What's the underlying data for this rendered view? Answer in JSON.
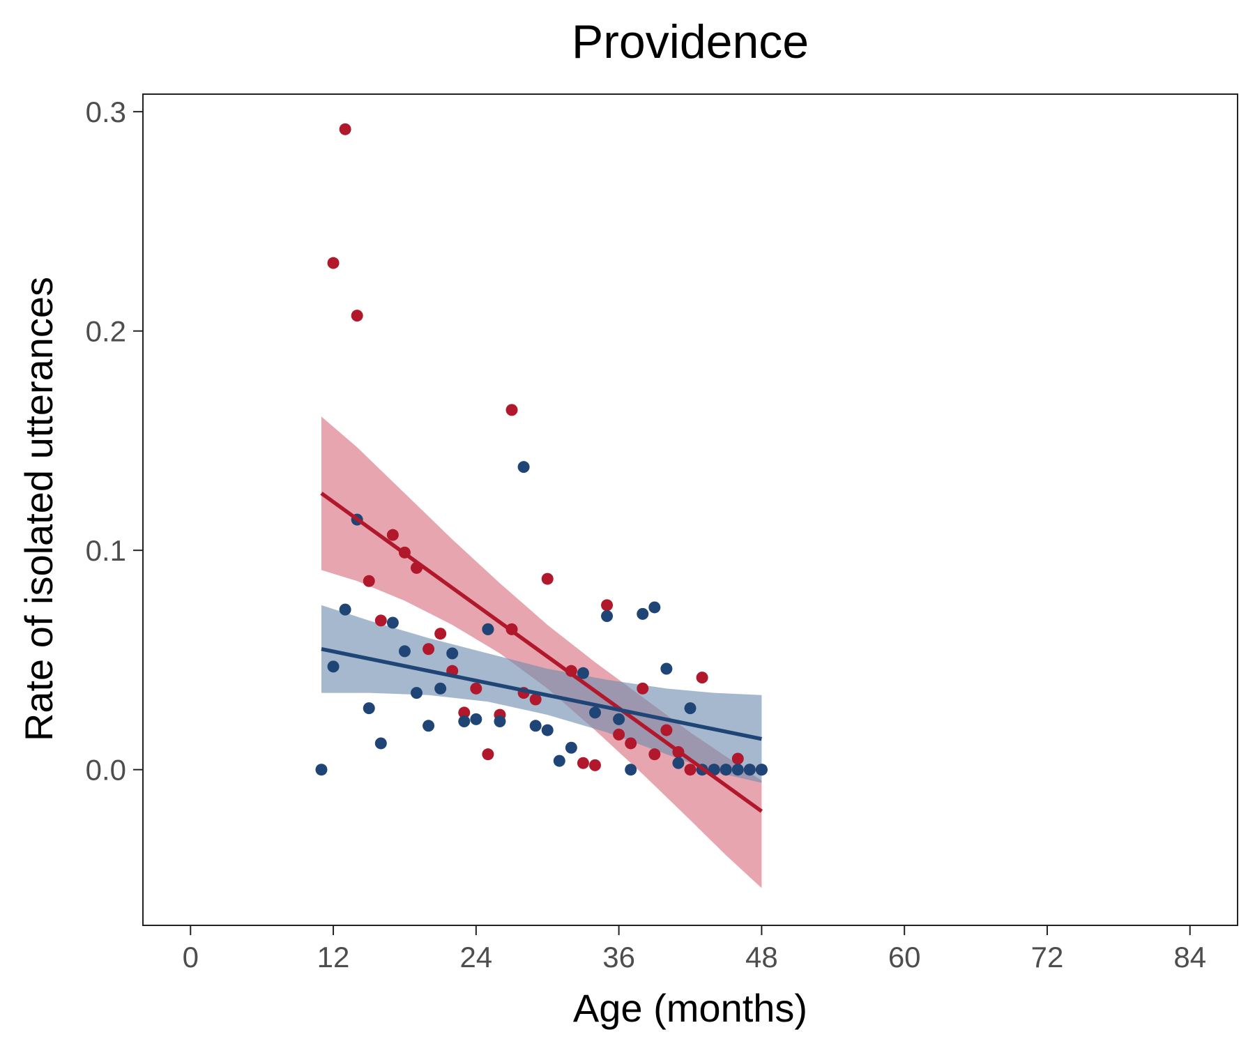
{
  "chart_data": {
    "type": "scatter",
    "title": "Providence",
    "xlabel": "Age (months)",
    "ylabel": "Rate of isolated utterances",
    "xlim": [
      -4,
      88
    ],
    "ylim": [
      -0.071,
      0.308
    ],
    "x_ticks": [
      0,
      12,
      24,
      36,
      48,
      60,
      72,
      84
    ],
    "x_tick_labels": [
      "0",
      "12",
      "24",
      "36",
      "48",
      "60",
      "72",
      "84"
    ],
    "y_ticks": [
      0.0,
      0.1,
      0.2,
      0.3
    ],
    "y_tick_labels": [
      "0.0",
      "0.1",
      "0.2",
      "0.3"
    ],
    "grid": false,
    "legend": "none",
    "series": [
      {
        "color": "#b2182b",
        "band_color": "#d9707e",
        "points": [
          [
            12,
            0.231
          ],
          [
            13,
            0.292
          ],
          [
            14,
            0.207
          ],
          [
            15,
            0.086
          ],
          [
            16,
            0.068
          ],
          [
            17,
            0.107
          ],
          [
            18,
            0.099
          ],
          [
            19,
            0.092
          ],
          [
            20,
            0.055
          ],
          [
            21,
            0.062
          ],
          [
            22,
            0.045
          ],
          [
            23,
            0.026
          ],
          [
            24,
            0.037
          ],
          [
            25,
            0.007
          ],
          [
            25,
            0.064
          ],
          [
            26,
            0.025
          ],
          [
            27,
            0.164
          ],
          [
            27,
            0.064
          ],
          [
            28,
            0.035
          ],
          [
            29,
            0.032
          ],
          [
            30,
            0.087
          ],
          [
            32,
            0.045
          ],
          [
            33,
            0.003
          ],
          [
            34,
            0.002
          ],
          [
            35,
            0.075
          ],
          [
            36,
            0.016
          ],
          [
            37,
            0.012
          ],
          [
            38,
            0.037
          ],
          [
            39,
            0.007
          ],
          [
            40,
            0.018
          ],
          [
            41,
            0.008
          ],
          [
            42,
            0.0
          ],
          [
            43,
            0.042
          ],
          [
            44,
            0.0
          ],
          [
            45,
            0.0
          ],
          [
            46,
            0.005
          ],
          [
            47,
            0.0
          ],
          [
            48,
            0.0
          ]
        ],
        "fit": {
          "x": [
            11,
            48
          ],
          "y": [
            0.126,
            -0.019
          ]
        },
        "band": {
          "x": [
            11,
            14,
            18,
            22,
            26,
            30,
            34,
            38,
            42,
            45,
            48
          ],
          "upper": [
            0.161,
            0.147,
            0.126,
            0.105,
            0.085,
            0.066,
            0.049,
            0.033,
            0.017,
            0.006,
            -0.005
          ],
          "lower": [
            0.091,
            0.086,
            0.077,
            0.066,
            0.053,
            0.037,
            0.018,
            -0.002,
            -0.023,
            -0.039,
            -0.054
          ]
        }
      },
      {
        "color": "#1f4577",
        "band_color": "#6f8cb0",
        "points": [
          [
            11,
            0.0
          ],
          [
            12,
            0.047
          ],
          [
            13,
            0.073
          ],
          [
            14,
            0.114
          ],
          [
            15,
            0.028
          ],
          [
            16,
            0.012
          ],
          [
            17,
            0.067
          ],
          [
            18,
            0.054
          ],
          [
            19,
            0.035
          ],
          [
            20,
            0.02
          ],
          [
            21,
            0.037
          ],
          [
            22,
            0.053
          ],
          [
            23,
            0.022
          ],
          [
            24,
            0.023
          ],
          [
            25,
            0.064
          ],
          [
            26,
            0.022
          ],
          [
            28,
            0.138
          ],
          [
            29,
            0.02
          ],
          [
            30,
            0.018
          ],
          [
            31,
            0.004
          ],
          [
            32,
            0.01
          ],
          [
            33,
            0.044
          ],
          [
            34,
            0.026
          ],
          [
            35,
            0.07
          ],
          [
            36,
            0.023
          ],
          [
            37,
            0.0
          ],
          [
            38,
            0.071
          ],
          [
            39,
            0.074
          ],
          [
            40,
            0.046
          ],
          [
            41,
            0.003
          ],
          [
            42,
            0.028
          ],
          [
            43,
            0.0
          ],
          [
            44,
            0.0
          ],
          [
            45,
            0.0
          ],
          [
            46,
            0.0
          ],
          [
            47,
            0.0
          ],
          [
            48,
            0.0
          ]
        ],
        "fit": {
          "x": [
            11,
            48
          ],
          "y": [
            0.055,
            0.014
          ]
        },
        "band": {
          "x": [
            11,
            15,
            20,
            25,
            30,
            35,
            40,
            44,
            48
          ],
          "upper": [
            0.075,
            0.068,
            0.06,
            0.053,
            0.046,
            0.041,
            0.037,
            0.035,
            0.034
          ],
          "lower": [
            0.035,
            0.035,
            0.034,
            0.031,
            0.025,
            0.017,
            0.007,
            -0.001,
            -0.006
          ]
        }
      }
    ]
  }
}
